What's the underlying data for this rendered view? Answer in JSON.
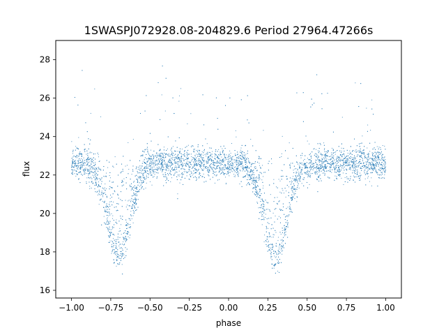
{
  "chart_data": {
    "type": "scatter",
    "title": "1SWASPJ072928.08-204829.6 Period 27964.47266s",
    "xlabel": "phase",
    "ylabel": "flux",
    "xlim": [
      -1.1,
      1.1
    ],
    "ylim": [
      15.6,
      29.0
    ],
    "xticks": [
      -1.0,
      -0.75,
      -0.5,
      -0.25,
      0.0,
      0.25,
      0.5,
      0.75,
      1.0
    ],
    "xtick_labels": [
      "−1.00",
      "−0.75",
      "−0.50",
      "−0.25",
      "0.00",
      "0.25",
      "0.50",
      "0.75",
      "1.00"
    ],
    "yticks": [
      16,
      18,
      20,
      22,
      24,
      26,
      28
    ],
    "ytick_labels": [
      "16",
      "18",
      "20",
      "22",
      "24",
      "26",
      "28"
    ],
    "grid": false,
    "legend": "none",
    "series": [
      {
        "point_color": "#1f77b4",
        "phase_range": [
          -1.0,
          1.0
        ],
        "baseline_flux": 22.6,
        "minima": [
          {
            "phase": -0.7,
            "flux": 17.8
          },
          {
            "phase": 0.3,
            "flux": 17.8
          }
        ],
        "approx_point_count": 6000
      }
    ]
  }
}
